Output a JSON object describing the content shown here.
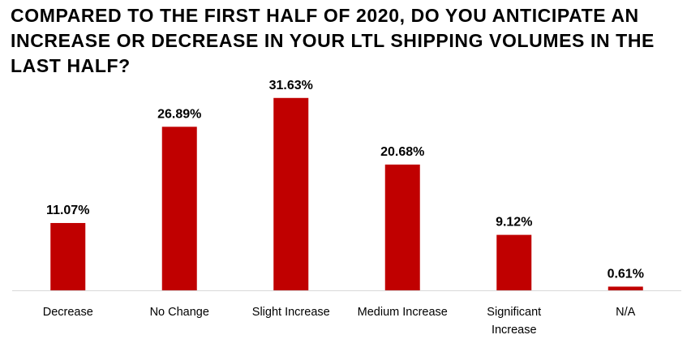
{
  "chart_data": {
    "type": "bar",
    "title": "COMPARED TO THE FIRST HALF OF 2020, DO YOU ANTICIPATE AN INCREASE OR DECREASE IN YOUR LTL SHIPPING VOLUMES IN THE LAST HALF?",
    "categories": [
      "Decrease",
      "No Change",
      "Slight Increase",
      "Medium Increase",
      "Significant Increase",
      "N/A"
    ],
    "category_lines": [
      [
        "Decrease"
      ],
      [
        "No Change"
      ],
      [
        "Slight Increase"
      ],
      [
        "Medium Increase"
      ],
      [
        "Significant",
        "Increase"
      ],
      [
        "N/A"
      ]
    ],
    "values": [
      11.07,
      26.89,
      31.63,
      20.68,
      9.12,
      0.61
    ],
    "value_labels": [
      "11.07%",
      "26.89%",
      "31.63%",
      "20.68%",
      "9.12%",
      "0.61%"
    ],
    "bar_color": "#C00000",
    "axis_color": "#D9D9D9",
    "xlabel": "",
    "ylabel": "",
    "grid": false,
    "legend": "none"
  }
}
